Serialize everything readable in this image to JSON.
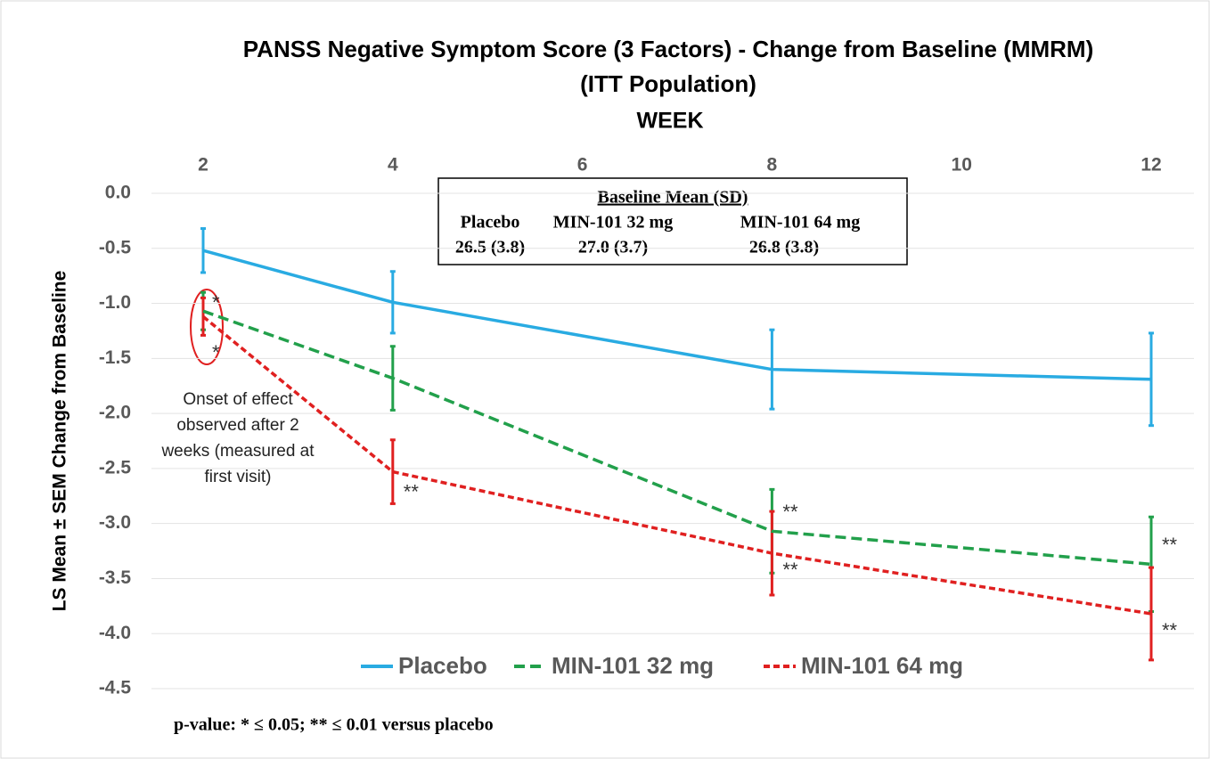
{
  "chart_data": {
    "type": "line",
    "title": "PANSS Negative Symptom Score (3 Factors) - Change from Baseline (MMRM)",
    "subtitle": "(ITT Population)",
    "x_label": "WEEK",
    "y_label": "LS Mean ± SEM Change from Baseline",
    "categories": [
      "2",
      "4",
      "6",
      "8",
      "10",
      "12"
    ],
    "ylim": [
      0,
      -4.5
    ],
    "yticks": [
      {
        "value": 0,
        "label": "0.0"
      },
      -0.5,
      {
        "value": -1,
        "label": "-1.0"
      },
      -1.5,
      {
        "value": -2,
        "label": "-2.0"
      },
      -2.5,
      {
        "value": -3,
        "label": "-3.0"
      },
      -3.5,
      {
        "value": -4,
        "label": "-4.0"
      },
      -4.5
    ],
    "grid": true,
    "legend": "bottom",
    "series": [
      {
        "name": "Placebo",
        "color": "#29abe2",
        "dash": "solid",
        "x": [
          "2",
          "4",
          "8",
          "12"
        ],
        "values": [
          -0.52,
          -0.99,
          -1.6,
          -1.69
        ],
        "errors": [
          0.2,
          0.28,
          0.36,
          0.42
        ]
      },
      {
        "name": "MIN-101 32 mg",
        "color": "#22a04b",
        "dash": "dashed",
        "x": [
          "2",
          "4",
          "8",
          "12"
        ],
        "values": [
          -1.07,
          -1.68,
          -3.07,
          -3.37
        ],
        "errors": [
          0.17,
          0.29,
          0.38,
          0.43
        ],
        "significance": [
          "*",
          null,
          "**",
          "**"
        ]
      },
      {
        "name": "MIN-101 64 mg",
        "color": "#e02020",
        "dash": "dotted",
        "x": [
          "2",
          "4",
          "8",
          "12"
        ],
        "values": [
          -1.12,
          -2.53,
          -3.27,
          -3.82
        ],
        "errors": [
          0.17,
          0.29,
          0.38,
          0.42
        ],
        "significance": [
          "*",
          "**",
          "**",
          "**"
        ]
      }
    ],
    "baseline_table": {
      "title": "Baseline Mean (SD)",
      "columns": [
        "Placebo",
        "MIN-101 32 mg",
        "MIN-101 64 mg"
      ],
      "values": [
        "26.5 (3.8)",
        "27.0 (3.7)",
        "26.8 (3.8)"
      ]
    },
    "onset_note": [
      "Onset of effect",
      "observed after 2",
      "weeks (measured at",
      "first visit)"
    ],
    "footnote": "p-value: * ≤ 0.05;  ** ≤ 0.01 versus placebo"
  }
}
